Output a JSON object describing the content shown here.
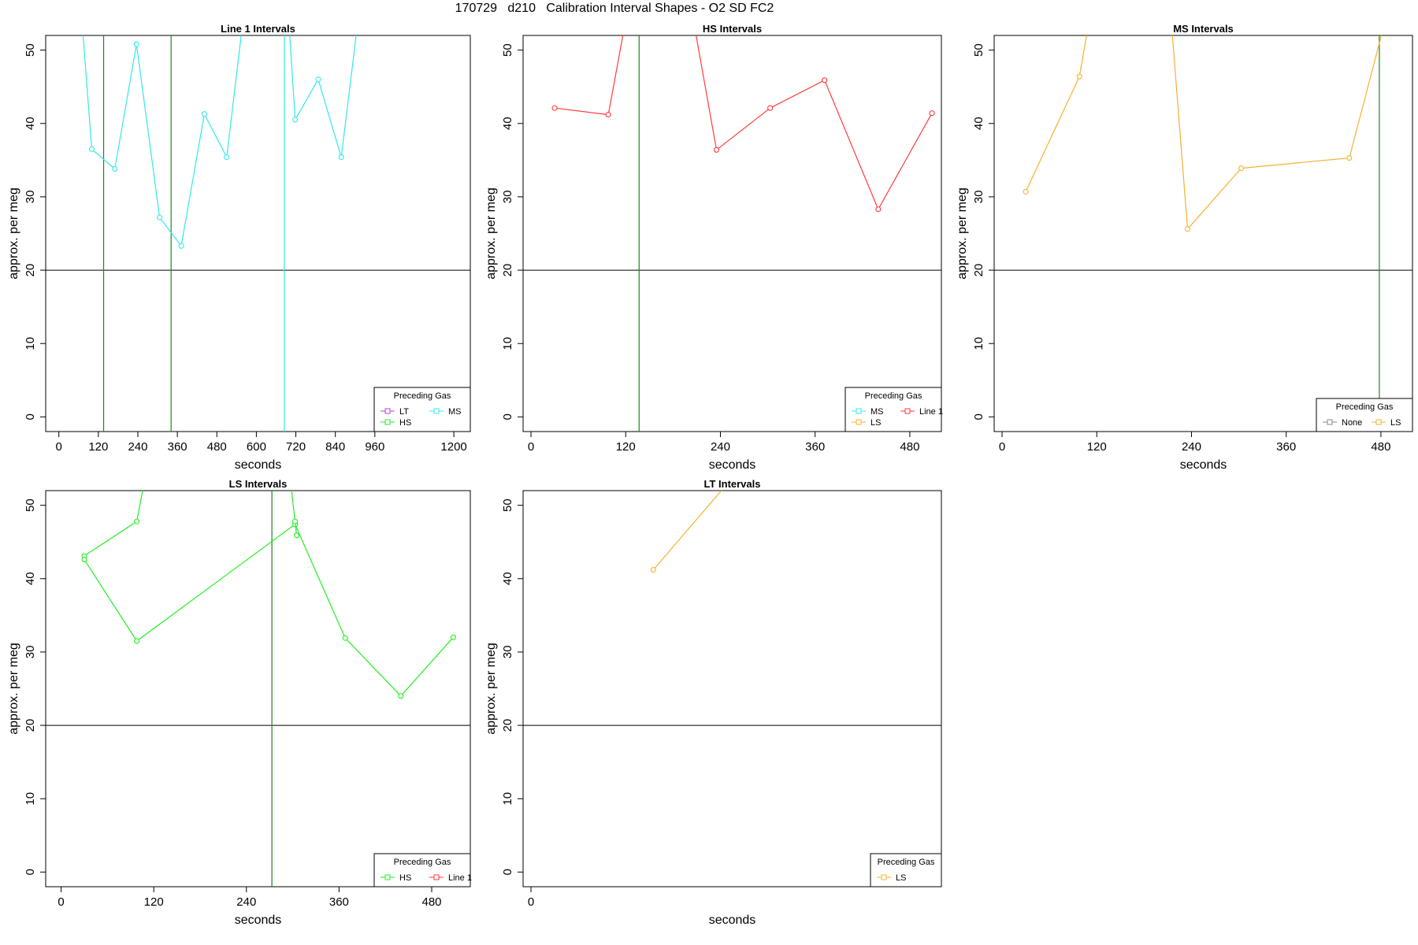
{
  "page_title": "170729   d210   Calibration Interval Shapes - O2 SD FC2",
  "colors": {
    "Line 1": "#ff3a3a",
    "HS": "#22ee22",
    "MS": "#33e8e8",
    "LS": "#f7b030",
    "LT": "#b040e0",
    "None": "#888888",
    "reference_line": "#000000"
  },
  "chart_data": [
    {
      "type": "line",
      "title": "Line 1 Intervals",
      "xlabel": "seconds",
      "ylabel": "approx. per meg",
      "xlim": [
        -40,
        1250
      ],
      "ylim": [
        -2,
        52
      ],
      "xticks": [
        0,
        120,
        240,
        360,
        480,
        600,
        720,
        840,
        960,
        1200
      ],
      "yticks": [
        0,
        10,
        20,
        30,
        40,
        50
      ],
      "hline": 20,
      "vlines": [
        {
          "x": 136,
          "gas": "HS"
        },
        {
          "x": 341,
          "gas": "HS"
        },
        {
          "x": 685,
          "gas": "MS"
        }
      ],
      "legend": {
        "title": "Preceding Gas",
        "position": "bottom-right",
        "entries": [
          "LT",
          "HS",
          "MS"
        ]
      },
      "series": [
        {
          "gas": "MS",
          "x": [
            60,
            100,
            170,
            236,
            306,
            372,
            442,
            510,
            575
          ],
          "y": [
            60,
            36.5,
            33.8,
            50.8,
            27.2,
            23.3,
            41.3,
            35.4,
            60
          ]
        },
        {
          "gas": "MS",
          "x": [
            690,
            718,
            788,
            858,
            925
          ],
          "y": [
            60,
            40.5,
            46.0,
            35.4,
            60
          ]
        }
      ]
    },
    {
      "type": "line",
      "title": "HS Intervals",
      "xlabel": "seconds",
      "ylabel": "approx. per meg",
      "xlim": [
        -10,
        520
      ],
      "ylim": [
        -2,
        52
      ],
      "xticks": [
        0,
        120,
        240,
        360,
        480
      ],
      "yticks": [
        0,
        10,
        20,
        30,
        40,
        50
      ],
      "hline": 20,
      "vlines": [
        {
          "x": 137,
          "gas": "HS"
        }
      ],
      "legend": {
        "title": "Preceding Gas",
        "position": "bottom-right",
        "entries": [
          "MS",
          "LS",
          "Line 1"
        ]
      },
      "series": [
        {
          "gas": "Line 1",
          "x": [
            30,
            98,
            130
          ],
          "y": [
            42.1,
            41.2,
            60
          ]
        },
        {
          "gas": "Line 1",
          "x": [
            196,
            235,
            303,
            372,
            440,
            508
          ],
          "y": [
            60,
            36.4,
            42.1,
            45.9,
            28.3,
            41.4
          ]
        }
      ]
    },
    {
      "type": "line",
      "title": "MS Intervals",
      "xlabel": "seconds",
      "ylabel": "approx. per meg",
      "xlim": [
        -10,
        520
      ],
      "ylim": [
        -2,
        52
      ],
      "xticks": [
        0,
        120,
        240,
        360,
        480
      ],
      "yticks": [
        0,
        10,
        20,
        30,
        40,
        50
      ],
      "hline": 20,
      "vlines": [
        {
          "x": 478,
          "gas": "HS"
        }
      ],
      "legend": {
        "title": "Preceding Gas",
        "position": "bottom-right",
        "entries": [
          "None",
          "LS"
        ]
      },
      "series": [
        {
          "gas": "LS",
          "x": [
            30,
            98,
            120
          ],
          "y": [
            30.7,
            46.4,
            60
          ]
        },
        {
          "gas": "LS",
          "x": [
            210,
            235,
            303,
            440,
            500
          ],
          "y": [
            60,
            25.6,
            33.9,
            35.3,
            60
          ]
        }
      ]
    },
    {
      "type": "line",
      "title": "LS Intervals",
      "xlabel": "seconds",
      "ylabel": "approx. per meg",
      "xlim": [
        -20,
        530
      ],
      "ylim": [
        -2,
        52
      ],
      "xticks": [
        0,
        120,
        240,
        360,
        480
      ],
      "yticks": [
        0,
        10,
        20,
        30,
        40,
        50
      ],
      "hline": 20,
      "vlines": [
        {
          "x": 273,
          "gas": "HS"
        }
      ],
      "legend": {
        "title": "Preceding Gas",
        "position": "bottom-right",
        "entries": [
          "HS",
          "Line 1"
        ]
      },
      "series": [
        {
          "gas": "HS",
          "x": [
            30,
            98,
            120
          ],
          "y": [
            43.1,
            47.8,
            60
          ]
        },
        {
          "gas": "HS",
          "x": [
            30,
            98,
            303,
            368,
            440,
            508
          ],
          "y": [
            42.6,
            31.5,
            47.4,
            31.9,
            24.0,
            32.0
          ]
        },
        {
          "gas": "HS",
          "x": [
            290,
            303,
            305
          ],
          "y": [
            60,
            47.8,
            45.9
          ]
        }
      ]
    },
    {
      "type": "line",
      "title": "LT Intervals",
      "xlabel": "seconds",
      "ylabel": "approx. per meg",
      "xlim": [
        -10,
        520
      ],
      "ylim": [
        -2,
        52
      ],
      "xticks": [
        0
      ],
      "yticks": [
        0,
        10,
        20,
        30,
        40,
        50
      ],
      "hline": 20,
      "vlines": [],
      "legend": {
        "title": "Preceding Gas",
        "position": "bottom-right",
        "entries": [
          "LS"
        ]
      },
      "series": [
        {
          "gas": "LS",
          "x": [
            155,
            305
          ],
          "y": [
            41.2,
            60
          ]
        }
      ]
    }
  ]
}
